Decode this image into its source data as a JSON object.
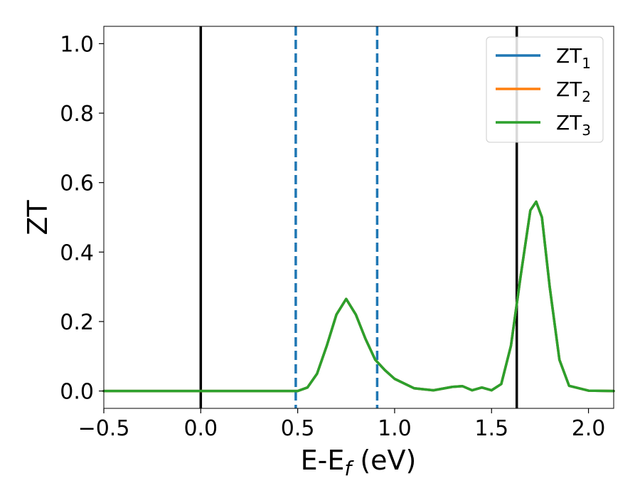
{
  "chart_data": {
    "type": "line",
    "xlabel_main": "E-E",
    "xlabel_sub": "f",
    "xlabel_unit": " (eV)",
    "ylabel": "ZT",
    "xlim": [
      -0.5,
      2.13
    ],
    "ylim": [
      -0.05,
      1.05
    ],
    "x_ticks": [
      -0.5,
      0.0,
      0.5,
      1.0,
      1.5,
      2.0
    ],
    "x_tick_labels": [
      "−0.5",
      "0.0",
      "0.5",
      "1.0",
      "1.5",
      "2.0"
    ],
    "y_ticks": [
      0.0,
      0.2,
      0.4,
      0.6,
      0.8,
      1.0
    ],
    "y_tick_labels": [
      "0.0",
      "0.2",
      "0.4",
      "0.6",
      "0.8",
      "1.0"
    ],
    "grid": false,
    "legend_position": "top-right",
    "vertical_lines": [
      {
        "x": 0.0,
        "style": "solid",
        "color": "#000000"
      },
      {
        "x": 0.49,
        "style": "dashed",
        "color": "#1f77b4"
      },
      {
        "x": 0.91,
        "style": "dashed",
        "color": "#1f77b4"
      },
      {
        "x": 1.63,
        "style": "solid",
        "color": "#000000"
      }
    ],
    "series": [
      {
        "name": "ZT",
        "sub": "1",
        "color": "#1f77b4",
        "x": [
          -0.5,
          0.0,
          0.4,
          0.5,
          0.55,
          0.6,
          0.65,
          0.7,
          0.75,
          0.8,
          0.85,
          0.9,
          0.95,
          1.0,
          1.1,
          1.2,
          1.3,
          1.35,
          1.4,
          1.45,
          1.5,
          1.55,
          1.6,
          1.65,
          1.7,
          1.73,
          1.76,
          1.8,
          1.85,
          1.9,
          2.0,
          2.13
        ],
        "y": [
          0.0,
          0.0,
          0.0,
          0.0,
          0.01,
          0.05,
          0.13,
          0.22,
          0.265,
          0.22,
          0.15,
          0.09,
          0.06,
          0.035,
          0.008,
          0.002,
          0.012,
          0.014,
          0.002,
          0.01,
          0.002,
          0.02,
          0.13,
          0.33,
          0.52,
          0.545,
          0.5,
          0.3,
          0.09,
          0.015,
          0.001,
          0.0
        ]
      },
      {
        "name": "ZT",
        "sub": "2",
        "color": "#ff7f0e",
        "x": [
          -0.5,
          0.0,
          0.4,
          0.5,
          0.55,
          0.6,
          0.65,
          0.7,
          0.75,
          0.8,
          0.85,
          0.9,
          0.95,
          1.0,
          1.1,
          1.2,
          1.3,
          1.35,
          1.4,
          1.45,
          1.5,
          1.55,
          1.6,
          1.65,
          1.7,
          1.73,
          1.76,
          1.8,
          1.85,
          1.9,
          2.0,
          2.13
        ],
        "y": [
          0.0,
          0.0,
          0.0,
          0.0,
          0.01,
          0.05,
          0.13,
          0.22,
          0.265,
          0.22,
          0.15,
          0.09,
          0.06,
          0.035,
          0.008,
          0.002,
          0.012,
          0.014,
          0.002,
          0.01,
          0.002,
          0.02,
          0.13,
          0.33,
          0.52,
          0.545,
          0.5,
          0.3,
          0.09,
          0.015,
          0.001,
          0.0
        ]
      },
      {
        "name": "ZT",
        "sub": "3",
        "color": "#2ca02c",
        "x": [
          -0.5,
          0.0,
          0.4,
          0.5,
          0.55,
          0.6,
          0.65,
          0.7,
          0.75,
          0.8,
          0.85,
          0.9,
          0.95,
          1.0,
          1.1,
          1.2,
          1.3,
          1.35,
          1.4,
          1.45,
          1.5,
          1.55,
          1.6,
          1.65,
          1.7,
          1.73,
          1.76,
          1.8,
          1.85,
          1.9,
          2.0,
          2.13
        ],
        "y": [
          0.0,
          0.0,
          0.0,
          0.0,
          0.01,
          0.05,
          0.13,
          0.22,
          0.265,
          0.22,
          0.15,
          0.09,
          0.06,
          0.035,
          0.008,
          0.002,
          0.012,
          0.014,
          0.002,
          0.01,
          0.002,
          0.02,
          0.13,
          0.33,
          0.52,
          0.545,
          0.5,
          0.3,
          0.09,
          0.015,
          0.001,
          0.0
        ]
      }
    ]
  }
}
